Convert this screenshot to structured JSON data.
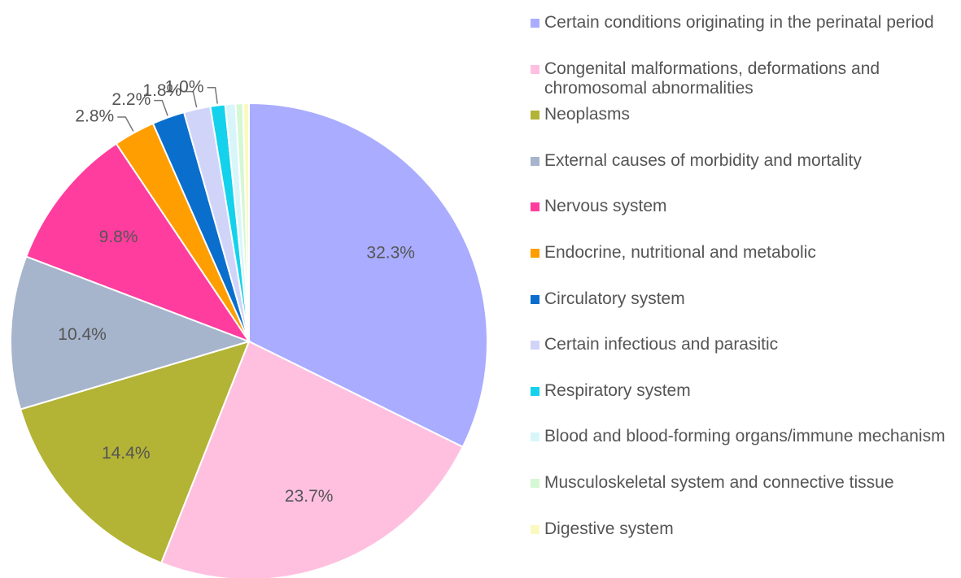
{
  "chart_data": {
    "type": "pie",
    "categories": [
      "Certain conditions originating in the perinatal period",
      "Congenital malformations, deformations and chromosomal abnormalities",
      "Neoplasms",
      "External causes of morbidity and mortality",
      "Nervous system",
      "Endocrine, nutritional and metabolic",
      "Circulatory system",
      "Certain infectious and parasitic",
      "Respiratory system",
      "Blood and blood-forming organs/immune mechanism",
      "Musculoskeletal system and connective tissue",
      "Digestive system"
    ],
    "values": [
      32.3,
      23.7,
      14.4,
      10.4,
      9.8,
      2.8,
      2.2,
      1.8,
      1.0,
      0.7,
      0.5,
      0.4
    ],
    "value_labels": [
      "32.3%",
      "23.7%",
      "14.4%",
      "10.4%",
      "9.8%",
      "2.8%",
      "2.2%",
      "1.8%",
      "1.0%",
      null,
      null,
      null
    ],
    "colors": [
      "#a9acff",
      "#ffc0e0",
      "#b3b335",
      "#a6b4cc",
      "#ff3d9e",
      "#ff9e00",
      "#0a6ecc",
      "#d0d4f8",
      "#14d2ec",
      "#d8f6fa",
      "#d4f7d4",
      "#fafac0"
    ],
    "legend": "right"
  }
}
